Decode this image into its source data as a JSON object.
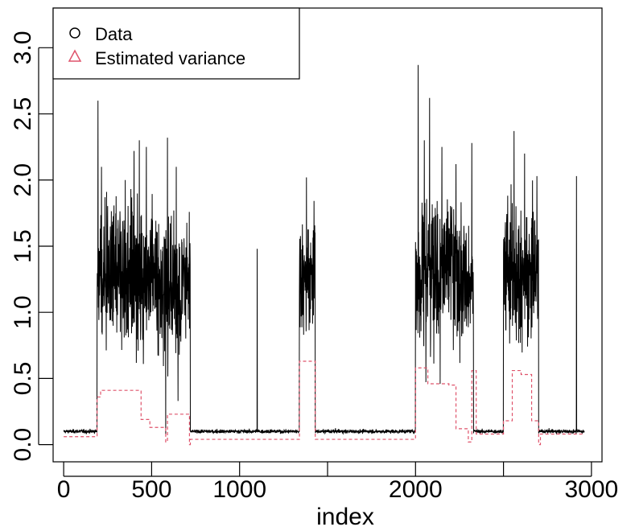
{
  "chart_data": {
    "type": "line",
    "title": "",
    "xlabel": "index",
    "ylabel": "",
    "xlim": [
      -60,
      3060
    ],
    "ylim": [
      -0.13,
      3.3
    ],
    "grid": false,
    "legend_position": "top-left",
    "x_ticks": [
      0,
      500,
      1000,
      1500,
      2000,
      2500,
      3000
    ],
    "x_tick_labels": [
      "0",
      "500",
      "1000",
      "",
      "2000",
      "",
      "3000"
    ],
    "y_ticks": [
      0.0,
      0.5,
      1.0,
      1.5,
      2.0,
      2.5,
      3.0
    ],
    "y_tick_labels": [
      "0.0",
      "0.5",
      "1.0",
      "1.5",
      "2.0",
      "2.5",
      "3.0"
    ],
    "legend": [
      {
        "label": "Data",
        "symbol": "circle",
        "color": "#000000"
      },
      {
        "label": "Estimated variance",
        "symbol": "triangle",
        "color": "#DF536B"
      }
    ],
    "series": [
      {
        "name": "Data",
        "color": "#000000",
        "style": "solid",
        "n": 2960,
        "baseline": 0.1,
        "baseline_noise": 0.012,
        "high_segments": [
          {
            "start": 190,
            "end": 530,
            "mean": 1.3,
            "spread": 0.45
          },
          {
            "start": 530,
            "end": 720,
            "mean": 1.2,
            "spread": 0.4
          },
          {
            "start": 1340,
            "end": 1430,
            "mean": 1.3,
            "spread": 0.35
          },
          {
            "start": 2000,
            "end": 2290,
            "mean": 1.3,
            "spread": 0.45
          },
          {
            "start": 2290,
            "end": 2330,
            "mean": 1.2,
            "spread": 0.4
          },
          {
            "start": 2500,
            "end": 2700,
            "mean": 1.3,
            "spread": 0.45
          }
        ],
        "spikes": [
          {
            "x": 195,
            "y": 2.6
          },
          {
            "x": 215,
            "y": 2.1
          },
          {
            "x": 350,
            "y": 2.0
          },
          {
            "x": 400,
            "y": 2.22
          },
          {
            "x": 430,
            "y": 2.3
          },
          {
            "x": 470,
            "y": 2.25
          },
          {
            "x": 590,
            "y": 2.32
          },
          {
            "x": 640,
            "y": 2.1
          },
          {
            "x": 1100,
            "y": 1.48
          },
          {
            "x": 1380,
            "y": 2.02
          },
          {
            "x": 2015,
            "y": 2.87
          },
          {
            "x": 2050,
            "y": 2.3
          },
          {
            "x": 2080,
            "y": 2.62
          },
          {
            "x": 2150,
            "y": 2.25
          },
          {
            "x": 2230,
            "y": 2.12
          },
          {
            "x": 2320,
            "y": 2.28
          },
          {
            "x": 2560,
            "y": 2.37
          },
          {
            "x": 2620,
            "y": 2.2
          },
          {
            "x": 2690,
            "y": 2.03
          },
          {
            "x": 2915,
            "y": 2.03
          }
        ],
        "dips": [
          {
            "x": 580,
            "y": 0.08
          },
          {
            "x": 650,
            "y": 0.33
          },
          {
            "x": 2140,
            "y": 0.46
          }
        ]
      },
      {
        "name": "Estimated variance",
        "color": "#DF536B",
        "style": "dashed",
        "steps": [
          {
            "x0": 0,
            "x1": 190,
            "y": 0.06
          },
          {
            "x0": 190,
            "x1": 210,
            "y": 0.36
          },
          {
            "x0": 210,
            "x1": 440,
            "y": 0.41
          },
          {
            "x0": 440,
            "x1": 490,
            "y": 0.19
          },
          {
            "x0": 490,
            "x1": 580,
            "y": 0.13
          },
          {
            "x0": 580,
            "x1": 590,
            "y": 0.02
          },
          {
            "x0": 590,
            "x1": 715,
            "y": 0.23
          },
          {
            "x0": 715,
            "x1": 720,
            "y": 0.0
          },
          {
            "x0": 720,
            "x1": 1340,
            "y": 0.04
          },
          {
            "x0": 1340,
            "x1": 1430,
            "y": 0.63
          },
          {
            "x0": 1430,
            "x1": 2000,
            "y": 0.04
          },
          {
            "x0": 2000,
            "x1": 2070,
            "y": 0.58
          },
          {
            "x0": 2070,
            "x1": 2190,
            "y": 0.46
          },
          {
            "x0": 2190,
            "x1": 2230,
            "y": 0.45
          },
          {
            "x0": 2230,
            "x1": 2300,
            "y": 0.12
          },
          {
            "x0": 2300,
            "x1": 2320,
            "y": 0.02
          },
          {
            "x0": 2320,
            "x1": 2345,
            "y": 0.56
          },
          {
            "x0": 2345,
            "x1": 2500,
            "y": 0.08
          },
          {
            "x0": 2500,
            "x1": 2550,
            "y": 0.18
          },
          {
            "x0": 2550,
            "x1": 2600,
            "y": 0.56
          },
          {
            "x0": 2600,
            "x1": 2660,
            "y": 0.53
          },
          {
            "x0": 2660,
            "x1": 2700,
            "y": 0.18
          },
          {
            "x0": 2700,
            "x1": 2710,
            "y": 0.0
          },
          {
            "x0": 2710,
            "x1": 2960,
            "y": 0.08
          }
        ]
      }
    ]
  }
}
